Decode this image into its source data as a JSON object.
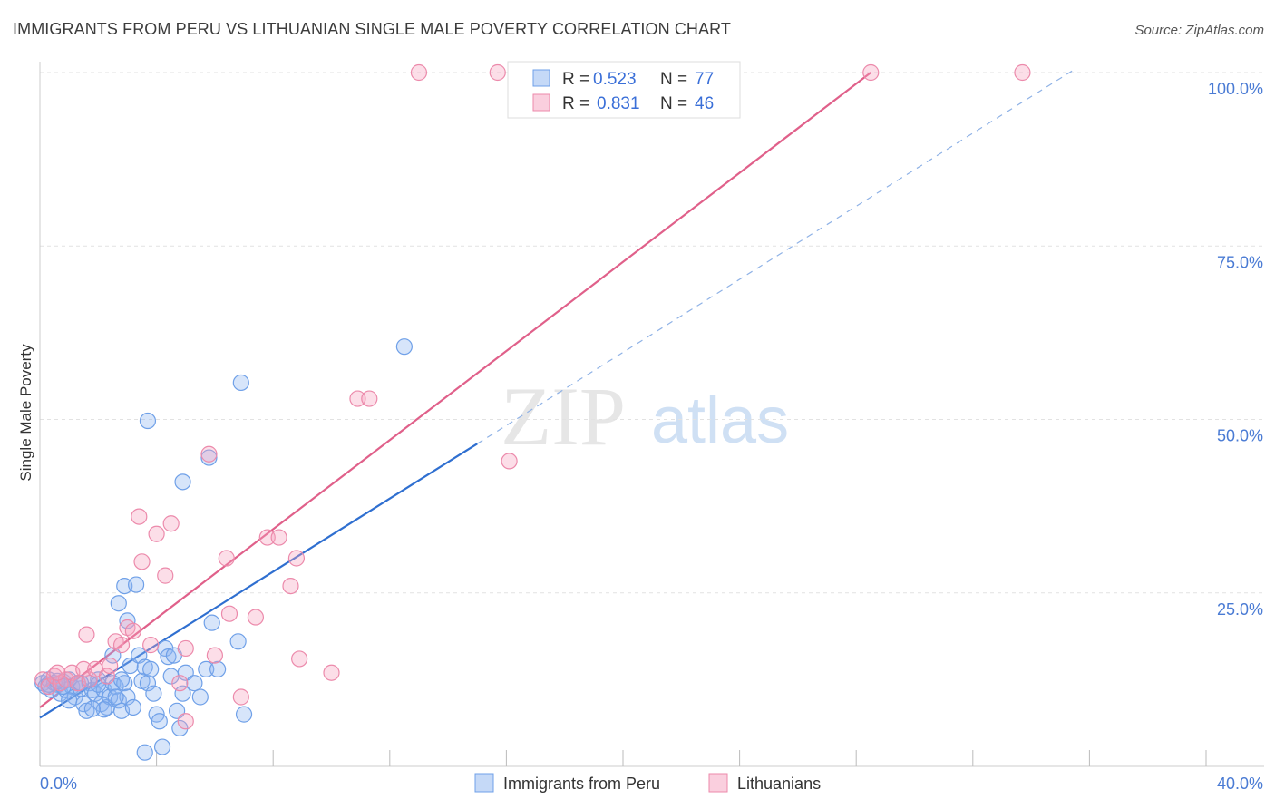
{
  "title": "IMMIGRANTS FROM PERU VS LITHUANIAN SINGLE MALE POVERTY CORRELATION CHART",
  "source": "Source: ZipAtlas.com",
  "watermark": {
    "zip": "ZIP",
    "atlas": "atlas"
  },
  "chart_data": {
    "type": "scatter",
    "title": "IMMIGRANTS FROM PERU VS LITHUANIAN SINGLE MALE POVERTY CORRELATION CHART",
    "xlabel": "",
    "ylabel": "Single Male Poverty",
    "xlim": [
      0,
      40
    ],
    "ylim": [
      0,
      100
    ],
    "x_tick_labels": [
      "0.0%",
      "40.0%"
    ],
    "y_ticks": [
      25,
      50,
      75,
      100
    ],
    "y_tick_labels": [
      "25.0%",
      "50.0%",
      "75.0%",
      "100.0%"
    ],
    "legend": {
      "position": "top-center",
      "entries": [
        {
          "r_label": "R =",
          "r_value": "0.523",
          "n_label": "N =",
          "n_value": "77"
        },
        {
          "r_label": "R =",
          "r_value": "0.831",
          "n_label": "N =",
          "n_value": "46"
        }
      ]
    },
    "series": [
      {
        "name": "Immigrants from Peru",
        "color": "#6fa0e8",
        "fill": "rgba(140,180,240,0.35)",
        "trend": {
          "x0": 0,
          "y0": 7.0,
          "x1": 15,
          "y1": 46.5,
          "dash_to_x": 35.5,
          "line_color": "#2f6fd0"
        },
        "points": [
          [
            0.1,
            12
          ],
          [
            0.2,
            11.5
          ],
          [
            0.3,
            12.5
          ],
          [
            0.4,
            11
          ],
          [
            0.5,
            12
          ],
          [
            0.6,
            11.8
          ],
          [
            0.7,
            10.5
          ],
          [
            0.8,
            12.2
          ],
          [
            0.9,
            11
          ],
          [
            1.0,
            12.5
          ],
          [
            1.1,
            11.5
          ],
          [
            1.2,
            10
          ],
          [
            1.3,
            12
          ],
          [
            1.4,
            11.2
          ],
          [
            1.5,
            9
          ],
          [
            1.6,
            8
          ],
          [
            1.7,
            12
          ],
          [
            1.8,
            11
          ],
          [
            1.9,
            10.5
          ],
          [
            2.0,
            12.5
          ],
          [
            2.1,
            9
          ],
          [
            2.2,
            11
          ],
          [
            2.3,
            8.5
          ],
          [
            2.4,
            10
          ],
          [
            2.5,
            12
          ],
          [
            2.6,
            11.5
          ],
          [
            2.7,
            9.5
          ],
          [
            2.8,
            8
          ],
          [
            2.9,
            12
          ],
          [
            3.0,
            10
          ],
          [
            2.2,
            8.2
          ],
          [
            1.8,
            8.3
          ],
          [
            2.5,
            16
          ],
          [
            2.6,
            10
          ],
          [
            2.7,
            23.5
          ],
          [
            2.8,
            12.5
          ],
          [
            2.9,
            26
          ],
          [
            3.0,
            21
          ],
          [
            3.1,
            14.5
          ],
          [
            3.2,
            8.5
          ],
          [
            3.3,
            26.2
          ],
          [
            3.4,
            16
          ],
          [
            3.5,
            12.3
          ],
          [
            3.6,
            14.3
          ],
          [
            3.7,
            12
          ],
          [
            3.8,
            14
          ],
          [
            3.9,
            10.5
          ],
          [
            4.0,
            7.5
          ],
          [
            4.1,
            6.5
          ],
          [
            4.3,
            17
          ],
          [
            4.4,
            15.8
          ],
          [
            4.5,
            13
          ],
          [
            4.6,
            16
          ],
          [
            4.7,
            8
          ],
          [
            4.8,
            5.5
          ],
          [
            4.9,
            10.5
          ],
          [
            5.0,
            13.5
          ],
          [
            5.3,
            12
          ],
          [
            5.5,
            10
          ],
          [
            5.7,
            14
          ],
          [
            5.9,
            20.7
          ],
          [
            6.1,
            14
          ],
          [
            6.8,
            18
          ],
          [
            7.0,
            7.5
          ],
          [
            3.6,
            2
          ],
          [
            4.2,
            2.8
          ],
          [
            3.7,
            49.8
          ],
          [
            4.9,
            41
          ],
          [
            5.8,
            44.5
          ],
          [
            6.9,
            55.3
          ],
          [
            12.5,
            60.5
          ],
          [
            0.3,
            11.8
          ],
          [
            0.6,
            12.3
          ],
          [
            1.0,
            9.5
          ],
          [
            1.4,
            12
          ],
          [
            2.0,
            11.8
          ],
          [
            0.8,
            11.5
          ]
        ]
      },
      {
        "name": "Lithuanians",
        "color": "#ec8aab",
        "fill": "rgba(245,160,190,0.35)",
        "trend": {
          "x0": 0,
          "y0": 8.5,
          "x1": 28.5,
          "y1": 100,
          "line_color": "#e0608a"
        },
        "points": [
          [
            0.1,
            12.5
          ],
          [
            0.3,
            11.5
          ],
          [
            0.5,
            13
          ],
          [
            0.7,
            12
          ],
          [
            0.9,
            12.5
          ],
          [
            1.1,
            13.5
          ],
          [
            1.3,
            12
          ],
          [
            1.5,
            14
          ],
          [
            1.7,
            12.5
          ],
          [
            1.9,
            14
          ],
          [
            1.6,
            19
          ],
          [
            2.3,
            13
          ],
          [
            2.4,
            14.5
          ],
          [
            2.6,
            18
          ],
          [
            2.8,
            17.5
          ],
          [
            3.0,
            20
          ],
          [
            3.2,
            19.5
          ],
          [
            3.4,
            36
          ],
          [
            3.5,
            29.5
          ],
          [
            3.8,
            17.5
          ],
          [
            4.0,
            33.5
          ],
          [
            4.3,
            27.5
          ],
          [
            4.5,
            35
          ],
          [
            4.8,
            12
          ],
          [
            5.0,
            17
          ],
          [
            5.0,
            6.5
          ],
          [
            5.8,
            45
          ],
          [
            6.0,
            16
          ],
          [
            6.4,
            30
          ],
          [
            6.5,
            22
          ],
          [
            6.9,
            10
          ],
          [
            7.4,
            21.5
          ],
          [
            7.8,
            33
          ],
          [
            8.2,
            33
          ],
          [
            8.6,
            26
          ],
          [
            8.8,
            30
          ],
          [
            8.9,
            15.5
          ],
          [
            10.0,
            13.5
          ],
          [
            10.9,
            53
          ],
          [
            11.3,
            53
          ],
          [
            16.1,
            44
          ],
          [
            13.0,
            100
          ],
          [
            15.7,
            100
          ],
          [
            28.5,
            100
          ],
          [
            33.7,
            100
          ],
          [
            0.6,
            13.5
          ]
        ]
      }
    ]
  },
  "bottom_legend": [
    "Immigrants from Peru",
    "Lithuanians"
  ]
}
